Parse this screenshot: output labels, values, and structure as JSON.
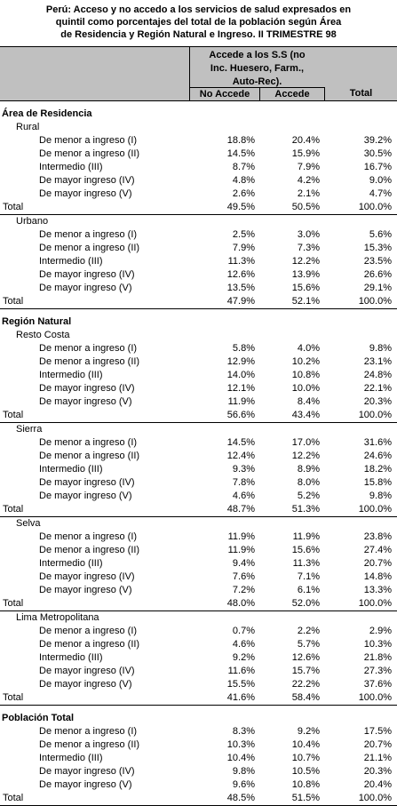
{
  "title": [
    "Perú: Acceso y no accedo a los servicios de salud expresados en",
    "quintil como porcentajes del total de la población según Área",
    "de Residencia y Región Natural e Ingreso. II TRIMESTRE 98"
  ],
  "header": {
    "group": [
      "Accede a los S.S (no",
      "Inc. Huesero, Farm.,",
      "Auto-Rec)."
    ],
    "no_accede": "No Accede",
    "accede": "Accede",
    "total": "Total"
  },
  "sections": [
    {
      "title": "Área de Residencia",
      "groups": [
        {
          "name": "Rural",
          "rows": [
            {
              "label": "De menor a ingreso (I)",
              "v": [
                "18.8%",
                "20.4%",
                "39.2%"
              ]
            },
            {
              "label": "De menor a ingreso (II)",
              "v": [
                "14.5%",
                "15.9%",
                "30.5%"
              ]
            },
            {
              "label": "Intermedio (III)",
              "v": [
                "8.7%",
                "7.9%",
                "16.7%"
              ]
            },
            {
              "label": "De mayor ingreso (IV)",
              "v": [
                "4.8%",
                "4.2%",
                "9.0%"
              ]
            },
            {
              "label": "De mayor ingreso (V)",
              "v": [
                "2.6%",
                "2.1%",
                "4.7%"
              ]
            }
          ],
          "total": {
            "label": "Total",
            "v": [
              "49.5%",
              "50.5%",
              "100.0%"
            ]
          }
        },
        {
          "name": "Urbano",
          "rows": [
            {
              "label": "De menor a ingreso (I)",
              "v": [
                "2.5%",
                "3.0%",
                "5.6%"
              ]
            },
            {
              "label": "De menor a ingreso (II)",
              "v": [
                "7.9%",
                "7.3%",
                "15.3%"
              ]
            },
            {
              "label": "Intermedio (III)",
              "v": [
                "11.3%",
                "12.2%",
                "23.5%"
              ]
            },
            {
              "label": "De mayor ingreso (IV)",
              "v": [
                "12.6%",
                "13.9%",
                "26.6%"
              ]
            },
            {
              "label": "De mayor ingreso (V)",
              "v": [
                "13.5%",
                "15.6%",
                "29.1%"
              ]
            }
          ],
          "total": {
            "label": "Total",
            "v": [
              "47.9%",
              "52.1%",
              "100.0%"
            ]
          }
        }
      ]
    },
    {
      "title": "Región Natural",
      "groups": [
        {
          "name": "Resto Costa",
          "rows": [
            {
              "label": "De menor a ingreso (I)",
              "v": [
                "5.8%",
                "4.0%",
                "9.8%"
              ]
            },
            {
              "label": "De menor a ingreso (II)",
              "v": [
                "12.9%",
                "10.2%",
                "23.1%"
              ]
            },
            {
              "label": "Intermedio (III)",
              "v": [
                "14.0%",
                "10.8%",
                "24.8%"
              ]
            },
            {
              "label": "De mayor ingreso (IV)",
              "v": [
                "12.1%",
                "10.0%",
                "22.1%"
              ]
            },
            {
              "label": "De mayor ingreso (V)",
              "v": [
                "11.9%",
                "8.4%",
                "20.3%"
              ]
            }
          ],
          "total": {
            "label": "Total",
            "v": [
              "56.6%",
              "43.4%",
              "100.0%"
            ]
          }
        },
        {
          "name": "Sierra",
          "rows": [
            {
              "label": "De menor a ingreso (I)",
              "v": [
                "14.5%",
                "17.0%",
                "31.6%"
              ]
            },
            {
              "label": "De menor a ingreso (II)",
              "v": [
                "12.4%",
                "12.2%",
                "24.6%"
              ]
            },
            {
              "label": "Intermedio (III)",
              "v": [
                "9.3%",
                "8.9%",
                "18.2%"
              ]
            },
            {
              "label": "De mayor ingreso (IV)",
              "v": [
                "7.8%",
                "8.0%",
                "15.8%"
              ]
            },
            {
              "label": "De mayor ingreso (V)",
              "v": [
                "4.6%",
                "5.2%",
                "9.8%"
              ]
            }
          ],
          "total": {
            "label": "Total",
            "v": [
              "48.7%",
              "51.3%",
              "100.0%"
            ]
          }
        },
        {
          "name": "Selva",
          "rows": [
            {
              "label": "De menor a ingreso (I)",
              "v": [
                "11.9%",
                "11.9%",
                "23.8%"
              ]
            },
            {
              "label": "De menor a ingreso (II)",
              "v": [
                "11.9%",
                "15.6%",
                "27.4%"
              ]
            },
            {
              "label": "Intermedio (III)",
              "v": [
                "9.4%",
                "11.3%",
                "20.7%"
              ]
            },
            {
              "label": "De mayor ingreso (IV)",
              "v": [
                "7.6%",
                "7.1%",
                "14.8%"
              ]
            },
            {
              "label": "De mayor ingreso (V)",
              "v": [
                "7.2%",
                "6.1%",
                "13.3%"
              ]
            }
          ],
          "total": {
            "label": "Total",
            "v": [
              "48.0%",
              "52.0%",
              "100.0%"
            ]
          }
        },
        {
          "name": "Lima Metropolitana",
          "rows": [
            {
              "label": "De menor a ingreso (I)",
              "v": [
                "0.7%",
                "2.2%",
                "2.9%"
              ]
            },
            {
              "label": "De menor a ingreso (II)",
              "v": [
                "4.6%",
                "5.7%",
                "10.3%"
              ]
            },
            {
              "label": "Intermedio (III)",
              "v": [
                "9.2%",
                "12.6%",
                "21.8%"
              ]
            },
            {
              "label": "De mayor ingreso (IV)",
              "v": [
                "11.6%",
                "15.7%",
                "27.3%"
              ]
            },
            {
              "label": "De mayor ingreso (V)",
              "v": [
                "15.5%",
                "22.2%",
                "37.6%"
              ]
            }
          ],
          "total": {
            "label": "Total",
            "v": [
              "41.6%",
              "58.4%",
              "100.0%"
            ]
          }
        }
      ]
    },
    {
      "title": "Población Total",
      "groups": [
        {
          "name": "",
          "rows": [
            {
              "label": "De menor a ingreso (I)",
              "v": [
                "8.3%",
                "9.2%",
                "17.5%"
              ]
            },
            {
              "label": "De menor a ingreso (II)",
              "v": [
                "10.3%",
                "10.4%",
                "20.7%"
              ]
            },
            {
              "label": "Intermedio (III)",
              "v": [
                "10.4%",
                "10.7%",
                "21.1%"
              ]
            },
            {
              "label": "De mayor ingreso (IV)",
              "v": [
                "9.8%",
                "10.5%",
                "20.3%"
              ]
            },
            {
              "label": "De mayor ingreso (V)",
              "v": [
                "9.6%",
                "10.8%",
                "20.4%"
              ]
            }
          ],
          "total": {
            "label": "Total",
            "v": [
              "48.5%",
              "51.5%",
              "100.0%"
            ]
          }
        }
      ]
    }
  ]
}
